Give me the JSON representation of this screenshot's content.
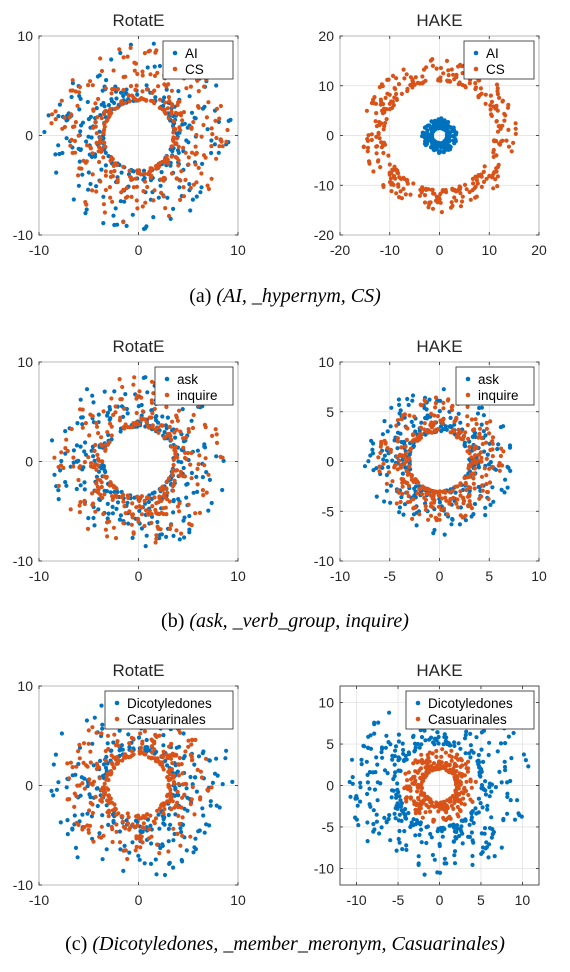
{
  "captions": [
    {
      "label": "(a)",
      "text": "(AI, _hypernym, CS)"
    },
    {
      "label": "(b)",
      "text": "(ask, _verb_group, inquire)"
    },
    {
      "label": "(c)",
      "text": "(Dicotyledones, _member_meronym, Casuarinales)"
    }
  ],
  "colors": {
    "series1": "#0072BD",
    "series2": "#D95319",
    "axis": "#262626",
    "grid": "#dedede"
  },
  "chart_data": [
    {
      "type": "scatter",
      "title": "RotatE",
      "xlim": [
        -10,
        10
      ],
      "ylim": [
        -10,
        10
      ],
      "xticks": [
        -10,
        0,
        10
      ],
      "yticks": [
        -10,
        0,
        10
      ],
      "grid": true,
      "legend_position": "top-right",
      "series": [
        {
          "name": "AI",
          "color": "#0072BD",
          "count": 280,
          "r_min": 3.5,
          "r_max": 9.5
        },
        {
          "name": "CS",
          "color": "#D95319",
          "count": 340,
          "r_min": 3.5,
          "r_max": 9.0
        }
      ]
    },
    {
      "type": "scatter",
      "title": "HAKE",
      "xlim": [
        -20,
        20
      ],
      "ylim": [
        -20,
        20
      ],
      "xticks": [
        -20,
        -10,
        0,
        10,
        20
      ],
      "yticks": [
        -20,
        -10,
        0,
        10,
        20
      ],
      "grid": true,
      "legend_position": "top-right",
      "series": [
        {
          "name": "AI",
          "color": "#0072BD",
          "count": 260,
          "r_min": 1.5,
          "r_max": 3.5
        },
        {
          "name": "CS",
          "color": "#D95319",
          "count": 330,
          "r_min": 11.0,
          "r_max": 15.5
        }
      ]
    },
    {
      "type": "scatter",
      "title": "RotatE",
      "xlim": [
        -10,
        10
      ],
      "ylim": [
        -10,
        10
      ],
      "xticks": [
        -10,
        0,
        10
      ],
      "yticks": [
        -10,
        0,
        10
      ],
      "grid": true,
      "legend_position": "top-right",
      "series": [
        {
          "name": "ask",
          "color": "#0072BD",
          "count": 300,
          "r_min": 3.5,
          "r_max": 9.0
        },
        {
          "name": "inquire",
          "color": "#D95319",
          "count": 320,
          "r_min": 3.5,
          "r_max": 8.5
        }
      ]
    },
    {
      "type": "scatter",
      "title": "HAKE",
      "xlim": [
        -10,
        10
      ],
      "ylim": [
        -10,
        10
      ],
      "xticks": [
        -10,
        -5,
        0,
        5,
        10
      ],
      "yticks": [
        -10,
        -5,
        0,
        5,
        10
      ],
      "grid": true,
      "legend_position": "top-right",
      "series": [
        {
          "name": "ask",
          "color": "#0072BD",
          "count": 300,
          "r_min": 3.0,
          "r_max": 7.5
        },
        {
          "name": "inquire",
          "color": "#D95319",
          "count": 330,
          "r_min": 3.0,
          "r_max": 6.5
        }
      ]
    },
    {
      "type": "scatter",
      "title": "RotatE",
      "xlim": [
        -10,
        10
      ],
      "ylim": [
        -10,
        10
      ],
      "xticks": [
        -10,
        0,
        10
      ],
      "yticks": [
        -10,
        0,
        10
      ],
      "grid": true,
      "legend_position": "top-right",
      "series": [
        {
          "name": "Dicotyledones",
          "color": "#0072BD",
          "count": 300,
          "r_min": 3.5,
          "r_max": 9.5
        },
        {
          "name": "Casuarinales",
          "color": "#D95319",
          "count": 340,
          "r_min": 3.0,
          "r_max": 7.5
        }
      ]
    },
    {
      "type": "scatter",
      "title": "HAKE",
      "xlim": [
        -12,
        12
      ],
      "ylim": [
        -12,
        12
      ],
      "xticks": [
        -10,
        -5,
        0,
        5,
        10
      ],
      "yticks": [
        -10,
        -5,
        0,
        5,
        10
      ],
      "grid": true,
      "legend_position": "top-right",
      "series": [
        {
          "name": "Dicotyledones",
          "color": "#0072BD",
          "count": 380,
          "r_min": 5.0,
          "r_max": 11.0
        },
        {
          "name": "Casuarinales",
          "color": "#D95319",
          "count": 300,
          "r_min": 2.0,
          "r_max": 4.5
        }
      ]
    }
  ]
}
